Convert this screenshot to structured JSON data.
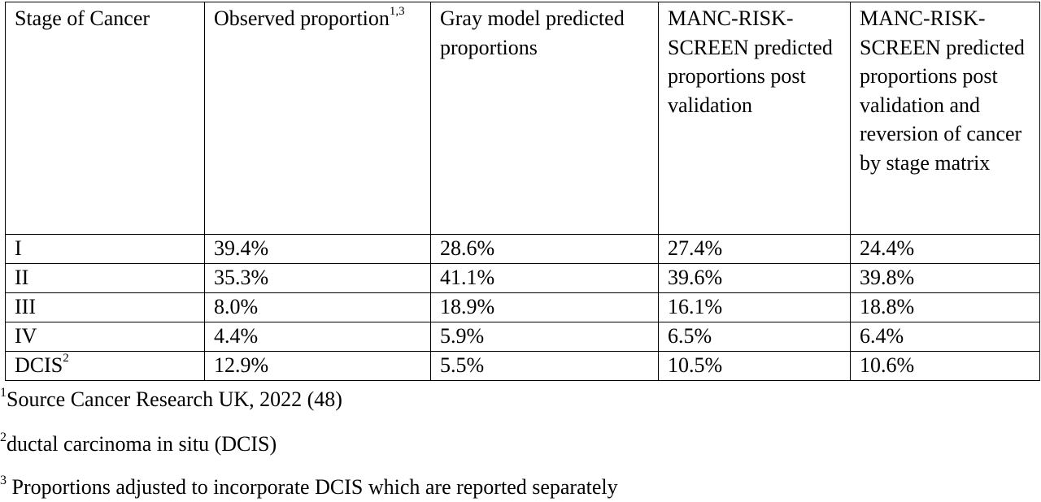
{
  "table": {
    "headers": [
      {
        "text": "Stage of Cancer",
        "sup": ""
      },
      {
        "text": "Observed proportion",
        "sup": "1,3"
      },
      {
        "text": "Gray model predicted proportions",
        "sup": ""
      },
      {
        "text": "MANC-RISK-SCREEN predicted proportions post validation",
        "sup": ""
      },
      {
        "text": "MANC-RISK-SCREEN predicted proportions post validation and reversion of cancer by stage matrix",
        "sup": ""
      }
    ],
    "rows": [
      {
        "stage": "I",
        "stage_sup": "",
        "observed": "39.4%",
        "gray": "28.6%",
        "manc_post_validation": "27.4%",
        "manc_post_validation_reversion": "24.4%"
      },
      {
        "stage": "II",
        "stage_sup": "",
        "observed": "35.3%",
        "gray": "41.1%",
        "manc_post_validation": "39.6%",
        "manc_post_validation_reversion": "39.8%"
      },
      {
        "stage": "III",
        "stage_sup": "",
        "observed": "8.0%",
        "gray": "18.9%",
        "manc_post_validation": "16.1%",
        "manc_post_validation_reversion": "18.8%"
      },
      {
        "stage": "IV",
        "stage_sup": "",
        "observed": "4.4%",
        "gray": "5.9%",
        "manc_post_validation": "6.5%",
        "manc_post_validation_reversion": "6.4%"
      },
      {
        "stage": "DCIS",
        "stage_sup": "2",
        "observed": "12.9%",
        "gray": "5.5%",
        "manc_post_validation": "10.5%",
        "manc_post_validation_reversion": "10.6%"
      }
    ]
  },
  "footnotes": [
    {
      "marker": "1",
      "text": "Source Cancer Research UK, 2022 (48)"
    },
    {
      "marker": "2",
      "text": "ductal carcinoma in situ (DCIS)"
    },
    {
      "marker": "3",
      "text": " Proportions adjusted to incorporate DCIS which are reported separately"
    }
  ]
}
